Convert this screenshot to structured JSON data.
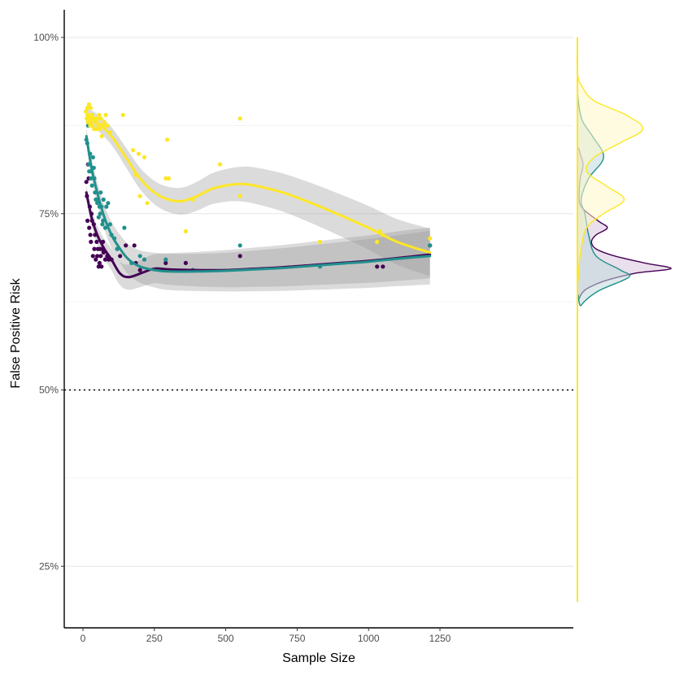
{
  "chart_data": {
    "type": "scatter",
    "xlabel": "Sample Size",
    "ylabel": "False Positive Risk",
    "xlim": [
      -50,
      1280
    ],
    "ylim": [
      0.16,
      1.04
    ],
    "x_ticks": [
      0,
      250,
      500,
      750,
      1000,
      1250
    ],
    "x_tick_labels": [
      "0",
      "250",
      "500",
      "750",
      "1000",
      "1250"
    ],
    "y_ticks": [
      0.25,
      0.5,
      0.75,
      1.0
    ],
    "y_tick_labels": [
      "25%",
      "50%",
      "75%",
      "100%"
    ],
    "y_minor_gridlines": [
      0.375,
      0.625,
      0.875
    ],
    "grid": "horizontal",
    "reference_line": {
      "y": 0.5,
      "style": "dotted"
    },
    "legend": "none",
    "marginal": {
      "type": "density",
      "side": "right",
      "y_range": [
        0.2,
        1.0
      ]
    },
    "series": [
      {
        "color": "#440154",
        "points": [
          [
            12,
            0.795
          ],
          [
            14,
            0.775
          ],
          [
            16,
            0.74
          ],
          [
            18,
            0.82
          ],
          [
            20,
            0.8
          ],
          [
            22,
            0.73
          ],
          [
            24,
            0.76
          ],
          [
            26,
            0.72
          ],
          [
            28,
            0.71
          ],
          [
            30,
            0.75
          ],
          [
            32,
            0.74
          ],
          [
            35,
            0.69
          ],
          [
            38,
            0.735
          ],
          [
            40,
            0.7
          ],
          [
            42,
            0.72
          ],
          [
            45,
            0.685
          ],
          [
            48,
            0.71
          ],
          [
            50,
            0.69
          ],
          [
            52,
            0.7
          ],
          [
            55,
            0.675
          ],
          [
            58,
            0.68
          ],
          [
            60,
            0.7
          ],
          [
            62,
            0.69
          ],
          [
            65,
            0.675
          ],
          [
            68,
            0.7
          ],
          [
            70,
            0.71
          ],
          [
            72,
            0.695
          ],
          [
            78,
            0.685
          ],
          [
            85,
            0.69
          ],
          [
            90,
            0.685
          ],
          [
            100,
            0.685
          ],
          [
            130,
            0.69
          ],
          [
            150,
            0.705
          ],
          [
            180,
            0.705
          ],
          [
            185,
            0.68
          ],
          [
            200,
            0.67
          ],
          [
            290,
            0.68
          ],
          [
            360,
            0.68
          ],
          [
            385,
            0.67
          ],
          [
            550,
            0.69
          ],
          [
            1030,
            0.675
          ],
          [
            1050,
            0.675
          ],
          [
            1215,
            0.705
          ]
        ],
        "smooth": [
          [
            12,
            0.78
          ],
          [
            30,
            0.745
          ],
          [
            50,
            0.72
          ],
          [
            75,
            0.7
          ],
          [
            100,
            0.685
          ],
          [
            130,
            0.665
          ],
          [
            160,
            0.66
          ],
          [
            200,
            0.665
          ],
          [
            250,
            0.672
          ],
          [
            300,
            0.671
          ],
          [
            400,
            0.67
          ],
          [
            500,
            0.67
          ],
          [
            600,
            0.672
          ],
          [
            700,
            0.674
          ],
          [
            800,
            0.677
          ],
          [
            900,
            0.68
          ],
          [
            1000,
            0.683
          ],
          [
            1100,
            0.687
          ],
          [
            1215,
            0.692
          ]
        ],
        "band": 0.01
      },
      {
        "color": "#21908C",
        "points": [
          [
            12,
            0.855
          ],
          [
            15,
            0.85
          ],
          [
            18,
            0.875
          ],
          [
            20,
            0.82
          ],
          [
            22,
            0.81
          ],
          [
            25,
            0.835
          ],
          [
            28,
            0.8
          ],
          [
            30,
            0.81
          ],
          [
            32,
            0.79
          ],
          [
            35,
            0.83
          ],
          [
            38,
            0.815
          ],
          [
            40,
            0.8
          ],
          [
            42,
            0.78
          ],
          [
            45,
            0.77
          ],
          [
            48,
            0.77
          ],
          [
            50,
            0.765
          ],
          [
            55,
            0.745
          ],
          [
            58,
            0.76
          ],
          [
            60,
            0.75
          ],
          [
            62,
            0.78
          ],
          [
            65,
            0.76
          ],
          [
            68,
            0.735
          ],
          [
            70,
            0.74
          ],
          [
            72,
            0.77
          ],
          [
            78,
            0.73
          ],
          [
            82,
            0.76
          ],
          [
            88,
            0.765
          ],
          [
            95,
            0.735
          ],
          [
            100,
            0.72
          ],
          [
            110,
            0.715
          ],
          [
            120,
            0.7
          ],
          [
            145,
            0.73
          ],
          [
            170,
            0.68
          ],
          [
            200,
            0.69
          ],
          [
            215,
            0.685
          ],
          [
            290,
            0.685
          ],
          [
            385,
            0.67
          ],
          [
            550,
            0.705
          ],
          [
            830,
            0.675
          ],
          [
            1215,
            0.705
          ]
        ],
        "smooth": [
          [
            12,
            0.86
          ],
          [
            30,
            0.815
          ],
          [
            50,
            0.78
          ],
          [
            75,
            0.745
          ],
          [
            100,
            0.72
          ],
          [
            130,
            0.7
          ],
          [
            160,
            0.685
          ],
          [
            200,
            0.675
          ],
          [
            250,
            0.67
          ],
          [
            300,
            0.668
          ],
          [
            400,
            0.668
          ],
          [
            500,
            0.669
          ],
          [
            600,
            0.671
          ],
          [
            700,
            0.673
          ],
          [
            800,
            0.676
          ],
          [
            900,
            0.679
          ],
          [
            1000,
            0.682
          ],
          [
            1100,
            0.686
          ],
          [
            1215,
            0.69
          ]
        ],
        "band": 0.012
      },
      {
        "color": "#FDE725",
        "points": [
          [
            10,
            0.895
          ],
          [
            13,
            0.885
          ],
          [
            15,
            0.9
          ],
          [
            17,
            0.88
          ],
          [
            19,
            0.89
          ],
          [
            21,
            0.905
          ],
          [
            23,
            0.885
          ],
          [
            25,
            0.875
          ],
          [
            27,
            0.9
          ],
          [
            29,
            0.88
          ],
          [
            31,
            0.89
          ],
          [
            33,
            0.875
          ],
          [
            36,
            0.885
          ],
          [
            39,
            0.87
          ],
          [
            42,
            0.885
          ],
          [
            45,
            0.88
          ],
          [
            48,
            0.87
          ],
          [
            51,
            0.885
          ],
          [
            54,
            0.875
          ],
          [
            57,
            0.89
          ],
          [
            60,
            0.87
          ],
          [
            63,
            0.885
          ],
          [
            66,
            0.86
          ],
          [
            70,
            0.875
          ],
          [
            75,
            0.88
          ],
          [
            80,
            0.89
          ],
          [
            85,
            0.875
          ],
          [
            95,
            0.865
          ],
          [
            140,
            0.89
          ],
          [
            175,
            0.84
          ],
          [
            185,
            0.805
          ],
          [
            195,
            0.835
          ],
          [
            200,
            0.775
          ],
          [
            215,
            0.83
          ],
          [
            225,
            0.765
          ],
          [
            290,
            0.8
          ],
          [
            295,
            0.855
          ],
          [
            300,
            0.8
          ],
          [
            360,
            0.725
          ],
          [
            385,
            0.77
          ],
          [
            480,
            0.82
          ],
          [
            550,
            0.885
          ],
          [
            550,
            0.775
          ],
          [
            830,
            0.71
          ],
          [
            1030,
            0.71
          ],
          [
            1040,
            0.725
          ],
          [
            1050,
            0.72
          ],
          [
            1215,
            0.715
          ]
        ],
        "smooth": [
          [
            12,
            0.89
          ],
          [
            50,
            0.88
          ],
          [
            100,
            0.86
          ],
          [
            150,
            0.83
          ],
          [
            200,
            0.8
          ],
          [
            250,
            0.78
          ],
          [
            300,
            0.77
          ],
          [
            350,
            0.768
          ],
          [
            400,
            0.775
          ],
          [
            450,
            0.785
          ],
          [
            500,
            0.79
          ],
          [
            550,
            0.792
          ],
          [
            600,
            0.79
          ],
          [
            700,
            0.78
          ],
          [
            800,
            0.765
          ],
          [
            900,
            0.748
          ],
          [
            1000,
            0.73
          ],
          [
            1100,
            0.71
          ],
          [
            1215,
            0.695
          ]
        ],
        "band": 0.01
      }
    ],
    "density": [
      {
        "color": "#440154",
        "fill": "#D8C4DC",
        "samples": [
          [
            0.2,
            0
          ],
          [
            0.58,
            0
          ],
          [
            0.63,
            0.02
          ],
          [
            0.65,
            0.2
          ],
          [
            0.665,
            0.6
          ],
          [
            0.672,
            1.0
          ],
          [
            0.68,
            0.72
          ],
          [
            0.69,
            0.4
          ],
          [
            0.7,
            0.2
          ],
          [
            0.71,
            0.15
          ],
          [
            0.72,
            0.2
          ],
          [
            0.73,
            0.32
          ],
          [
            0.74,
            0.22
          ],
          [
            0.76,
            0.04
          ],
          [
            0.78,
            0.02
          ],
          [
            0.8,
            0.03
          ],
          [
            0.82,
            0.06
          ],
          [
            0.84,
            0.02
          ],
          [
            0.86,
            0.0
          ],
          [
            1.0,
            0
          ]
        ]
      },
      {
        "color": "#21908C",
        "fill": "#BFD9DA",
        "samples": [
          [
            0.2,
            0
          ],
          [
            0.6,
            0
          ],
          [
            0.62,
            0.04
          ],
          [
            0.64,
            0.22
          ],
          [
            0.66,
            0.55
          ],
          [
            0.67,
            0.46
          ],
          [
            0.69,
            0.2
          ],
          [
            0.72,
            0.12
          ],
          [
            0.75,
            0.08
          ],
          [
            0.77,
            0.04
          ],
          [
            0.8,
            0.12
          ],
          [
            0.83,
            0.28
          ],
          [
            0.86,
            0.16
          ],
          [
            0.88,
            0.06
          ],
          [
            0.9,
            0.02
          ],
          [
            0.93,
            0.0
          ],
          [
            1.0,
            0
          ]
        ]
      },
      {
        "color": "#FDE725",
        "fill": "#FEF8C8",
        "samples": [
          [
            0.2,
            0
          ],
          [
            0.6,
            0
          ],
          [
            0.66,
            0.01
          ],
          [
            0.7,
            0.04
          ],
          [
            0.73,
            0.1
          ],
          [
            0.75,
            0.28
          ],
          [
            0.77,
            0.5
          ],
          [
            0.79,
            0.3
          ],
          [
            0.81,
            0.1
          ],
          [
            0.83,
            0.18
          ],
          [
            0.85,
            0.45
          ],
          [
            0.87,
            0.7
          ],
          [
            0.89,
            0.52
          ],
          [
            0.91,
            0.18
          ],
          [
            0.93,
            0.05
          ],
          [
            0.95,
            0.0
          ],
          [
            1.0,
            0
          ]
        ]
      }
    ]
  }
}
